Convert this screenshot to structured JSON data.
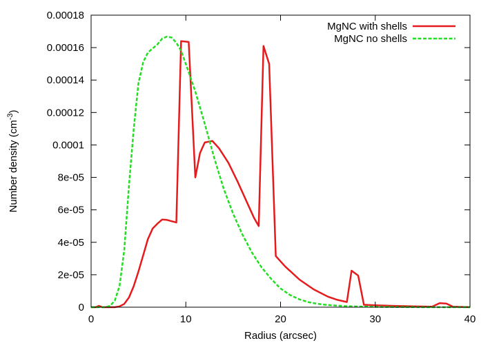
{
  "chart_data": {
    "type": "line",
    "title": "",
    "xlabel": "Radius (arcsec)",
    "ylabel_base": "Number density (cm",
    "ylabel_sup": "-3",
    "ylabel_end": ")",
    "xlim": [
      0,
      40
    ],
    "ylim": [
      0,
      0.00018
    ],
    "x_ticks": [
      0,
      10,
      20,
      30,
      40
    ],
    "x_tick_labels": [
      "0",
      "10",
      "20",
      "30",
      "40"
    ],
    "y_ticks": [
      0,
      2e-05,
      4e-05,
      6e-05,
      8e-05,
      0.0001,
      0.00012,
      0.00014,
      0.00016,
      0.00018
    ],
    "y_tick_labels": [
      "0",
      "2e-05",
      "4e-05",
      "6e-05",
      "8e-05",
      "0.0001",
      "0.00012",
      "0.00014",
      "0.00016",
      "0.00018"
    ],
    "grid": false,
    "legend_position": "top-right",
    "series": [
      {
        "name": "MgNC with shells",
        "color": "#e41a1c",
        "style": "solid",
        "points": [
          [
            0,
            0
          ],
          [
            0.5,
            0
          ],
          [
            0.8,
            8e-07
          ],
          [
            1.2,
            0
          ],
          [
            2.5,
            0
          ],
          [
            3.0,
            5e-07
          ],
          [
            3.5,
            2e-06
          ],
          [
            4.0,
            6e-06
          ],
          [
            4.5,
            1.3e-05
          ],
          [
            5.0,
            2.2e-05
          ],
          [
            5.5,
            3.2e-05
          ],
          [
            6.0,
            4.2e-05
          ],
          [
            6.5,
            4.85e-05
          ],
          [
            7.0,
            5.15e-05
          ],
          [
            7.5,
            5.4e-05
          ],
          [
            8.0,
            5.38e-05
          ],
          [
            8.5,
            5.3e-05
          ],
          [
            9.0,
            5.22e-05
          ],
          [
            9.5,
            0.000164
          ],
          [
            10.3,
            0.0001635
          ],
          [
            11.0,
            8e-05
          ],
          [
            11.5,
            9.5e-05
          ],
          [
            12.0,
            0.0001015
          ],
          [
            12.8,
            0.0001025
          ],
          [
            13.5,
            9.8e-05
          ],
          [
            14.5,
            8.9e-05
          ],
          [
            15.5,
            7.7e-05
          ],
          [
            16.5,
            6.4e-05
          ],
          [
            17.2,
            5.5e-05
          ],
          [
            17.7,
            5e-05
          ],
          [
            18.2,
            0.000161
          ],
          [
            18.8,
            0.00015
          ],
          [
            19.5,
            3.15e-05
          ],
          [
            20.5,
            2.5e-05
          ],
          [
            22.0,
            1.7e-05
          ],
          [
            23.5,
            1.1e-05
          ],
          [
            25.0,
            6.5e-06
          ],
          [
            26.0,
            4.5e-06
          ],
          [
            27.0,
            3.2e-06
          ],
          [
            27.5,
            2.25e-05
          ],
          [
            28.2,
            1.95e-05
          ],
          [
            28.8,
            1.5e-06
          ],
          [
            30.0,
            1.2e-06
          ],
          [
            32.0,
            8e-07
          ],
          [
            34.0,
            5e-07
          ],
          [
            36.0,
            3e-07
          ],
          [
            36.8,
            2.5e-06
          ],
          [
            37.5,
            2.2e-06
          ],
          [
            38.2,
            3e-07
          ],
          [
            40.0,
            0
          ]
        ]
      },
      {
        "name": "MgNC no shells",
        "color": "#22dd22",
        "style": "dashed",
        "points": [
          [
            0,
            0
          ],
          [
            1.5,
            0
          ],
          [
            2.0,
            8e-07
          ],
          [
            2.5,
            4e-06
          ],
          [
            3.0,
            1.3e-05
          ],
          [
            3.5,
            3.5e-05
          ],
          [
            4.0,
            7.5e-05
          ],
          [
            4.5,
            0.00011
          ],
          [
            5.0,
            0.000138
          ],
          [
            5.5,
            0.000151
          ],
          [
            6.0,
            0.000157
          ],
          [
            6.5,
            0.0001595
          ],
          [
            7.0,
            0.000162
          ],
          [
            7.5,
            0.0001655
          ],
          [
            8.0,
            0.0001668
          ],
          [
            8.5,
            0.0001662
          ],
          [
            9.0,
            0.000163
          ],
          [
            9.5,
            0.000158
          ],
          [
            10.0,
            0.00015
          ],
          [
            11.0,
            0.000133
          ],
          [
            12.0,
            0.000113
          ],
          [
            13.0,
            9.2e-05
          ],
          [
            14.0,
            7.3e-05
          ],
          [
            15.0,
            5.75e-05
          ],
          [
            16.0,
            4.45e-05
          ],
          [
            17.0,
            3.35e-05
          ],
          [
            18.0,
            2.45e-05
          ],
          [
            19.0,
            1.75e-05
          ],
          [
            20.0,
            1.15e-05
          ],
          [
            21.0,
            7.5e-06
          ],
          [
            22.0,
            4.8e-06
          ],
          [
            23.0,
            3e-06
          ],
          [
            24.0,
            2e-06
          ],
          [
            25.0,
            1.3e-06
          ],
          [
            27.0,
            6e-07
          ],
          [
            30.0,
            2e-07
          ],
          [
            35.0,
            0
          ],
          [
            40.0,
            0
          ]
        ]
      }
    ]
  }
}
